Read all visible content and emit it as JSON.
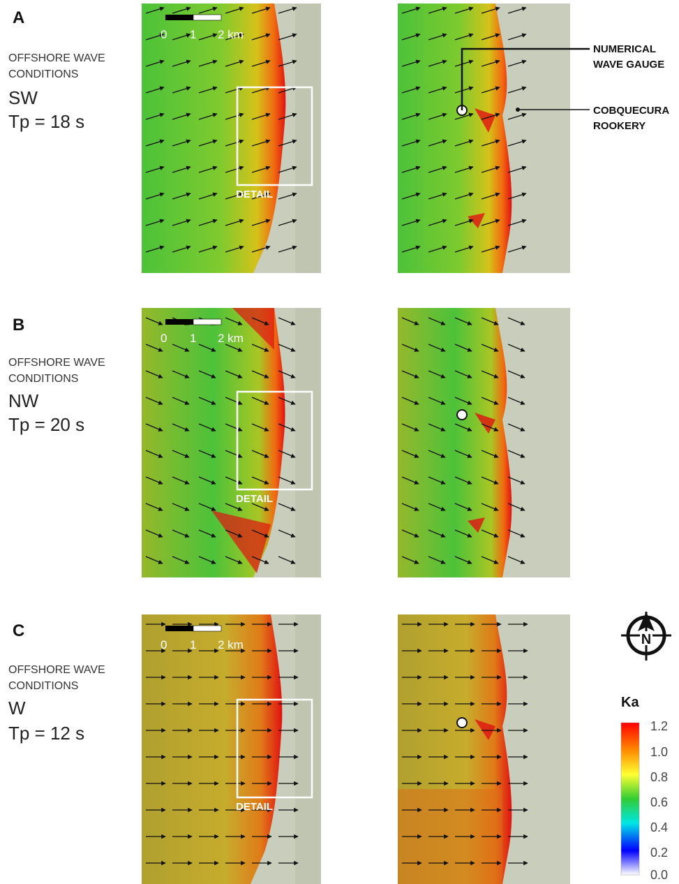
{
  "panels": [
    {
      "letter": "A",
      "cond1": "OFFSHORE WAVE",
      "cond2": "CONDITIONS",
      "direction": "SW",
      "tp": "Tp = 18 s"
    },
    {
      "letter": "B",
      "cond1": "OFFSHORE WAVE",
      "cond2": "CONDITIONS",
      "direction": "NW",
      "tp": "Tp = 20 s"
    },
    {
      "letter": "C",
      "cond1": "OFFSHORE WAVE",
      "cond2": "CONDITIONS",
      "direction": "W",
      "tp": "Tp = 12 s"
    }
  ],
  "scale": {
    "t0": "0",
    "t1": "1",
    "t2": "2 km"
  },
  "detail_label": "DETAIL",
  "annotations": {
    "gauge_1": "NUMERICAL",
    "gauge_2": "WAVE GAUGE",
    "rookery_1": "COBQUECURA",
    "rookery_2": "ROOKERY"
  },
  "north_letter": "N",
  "colorbar": {
    "title": "Ka",
    "ticks": [
      "1.2",
      "1.0",
      "0.8",
      "0.6",
      "0.4",
      "0.2",
      "0.0"
    ],
    "colors": [
      "#ff0000",
      "#ff8a00",
      "#ffff33",
      "#33cc33",
      "#00e6e6",
      "#0000ff",
      "#ffffff"
    ]
  }
}
